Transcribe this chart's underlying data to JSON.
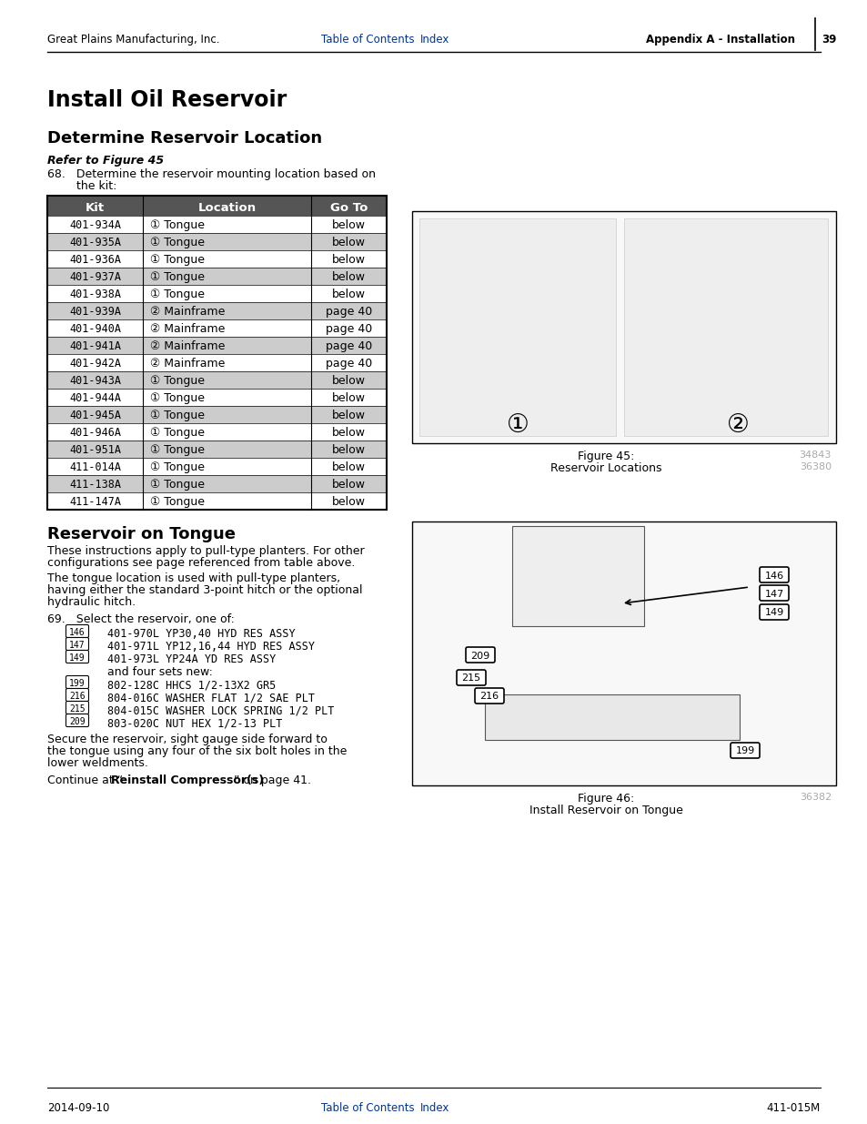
{
  "page_title": "Install Oil Reservoir",
  "section1_title": "Determine Reservoir Location",
  "section1_italic": "Refer to Figure 45",
  "step68_line1": "68.   Determine the reservoir mounting location based on",
  "step68_line2": "        the kit:",
  "table_headers": [
    "Kit",
    "Location",
    "Go To"
  ],
  "table_rows": [
    [
      "401-934A",
      "① Tongue",
      "below"
    ],
    [
      "401-935A",
      "① Tongue",
      "below"
    ],
    [
      "401-936A",
      "① Tongue",
      "below"
    ],
    [
      "401-937A",
      "① Tongue",
      "below"
    ],
    [
      "401-938A",
      "① Tongue",
      "below"
    ],
    [
      "401-939A",
      "② Mainframe",
      "page 40"
    ],
    [
      "401-940A",
      "② Mainframe",
      "page 40"
    ],
    [
      "401-941A",
      "② Mainframe",
      "page 40"
    ],
    [
      "401-942A",
      "② Mainframe",
      "page 40"
    ],
    [
      "401-943A",
      "① Tongue",
      "below"
    ],
    [
      "401-944A",
      "① Tongue",
      "below"
    ],
    [
      "401-945A",
      "① Tongue",
      "below"
    ],
    [
      "401-946A",
      "① Tongue",
      "below"
    ],
    [
      "401-951A",
      "① Tongue",
      "below"
    ],
    [
      "411-014A",
      "① Tongue",
      "below"
    ],
    [
      "411-138A",
      "① Tongue",
      "below"
    ],
    [
      "411-147A",
      "① Tongue",
      "below"
    ]
  ],
  "table_shaded_rows": [
    1,
    3,
    5,
    7,
    9,
    11,
    13,
    15
  ],
  "fig45_caption1": "Figure 45:",
  "fig45_caption2": "Reservoir Locations",
  "fig45_num1": "34843",
  "fig45_num2": "36380",
  "section2_title": "Reservoir on Tongue",
  "section2_para1_line1": "These instructions apply to pull-type planters. For other",
  "section2_para1_line2": "configurations see page referenced from table above.",
  "section2_para2_line1": "The tongue location is used with pull-type planters,",
  "section2_para2_line2": "having either the standard 3-point hitch or the optional",
  "section2_para2_line3": "hydraulic hitch.",
  "step69_prefix": "69.   Select the reservoir, one of:",
  "step69_items": [
    [
      "146",
      "401-970L YP30,40 HYD RES ASSY"
    ],
    [
      "147",
      "401-971L YP12,16,44 HYD RES ASSY"
    ],
    [
      "149",
      "401-973L YP24A YD RES ASSY"
    ]
  ],
  "step69_and": "and four sets new:",
  "step69_items2": [
    [
      "199",
      "802-128C HHCS 1/2-13X2 GR5"
    ],
    [
      "216",
      "804-016C WASHER FLAT 1/2 SAE PLT"
    ],
    [
      "215",
      "804-015C WASHER LOCK SPRING 1/2 PLT"
    ],
    [
      "209",
      "803-020C NUT HEX 1/2-13 PLT"
    ]
  ],
  "step69_secure_line1": "Secure the reservoir, sight gauge side forward to",
  "step69_secure_line2": "the tongue using any four of the six bolt holes in the",
  "step69_secure_line3": "lower weldments.",
  "continue_pre": "Continue at “",
  "continue_bold": "Reinstall Compressor(s)",
  "continue_post": "” on page 41.",
  "fig46_caption1": "Figure 46:",
  "fig46_caption2": "Install Reservoir on Tongue",
  "fig46_num": "36382",
  "header_left": "Great Plains Manufacturing, Inc.",
  "header_link1": "Table of Contents",
  "header_link2": "Index",
  "header_right_bold": "Appendix A - Installation",
  "header_page": "39",
  "footer_left": "2014-09-10",
  "footer_link1": "Table of Contents",
  "footer_link2": "Index",
  "footer_right": "411-015M",
  "link_color": "#003399",
  "page_bg": "#ffffff",
  "table_header_bg": "#555555",
  "table_header_fg": "#ffffff",
  "table_shaded_bg": "#cccccc",
  "table_border": "#000000",
  "fig_num_color": "#aaaaaa"
}
